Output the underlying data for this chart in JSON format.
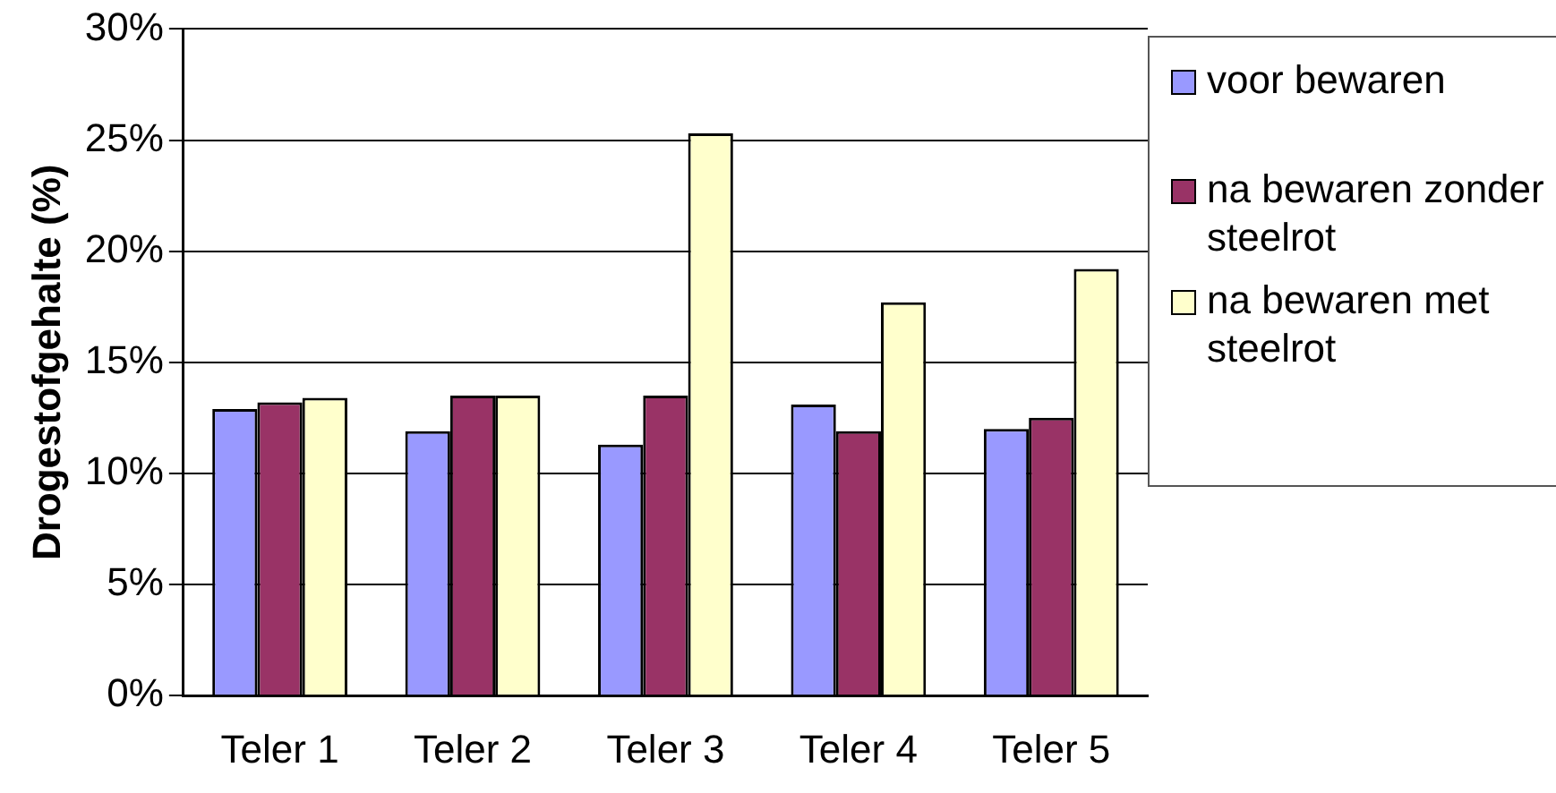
{
  "chart_data": {
    "type": "bar",
    "ylabel": "Drogestofgehalte (%)",
    "categories": [
      "Teler 1",
      "Teler 2",
      "Teler 3",
      "Teler 4",
      "Teler 5"
    ],
    "series": [
      {
        "name": "voor bewaren",
        "color": "#9999ff",
        "values": [
          12.9,
          11.9,
          11.3,
          13.1,
          12.0
        ]
      },
      {
        "name": "na bewaren zonder steelrot",
        "color": "#993366",
        "values": [
          13.2,
          13.5,
          13.5,
          11.9,
          12.5
        ]
      },
      {
        "name": "na bewaren met steelrot",
        "color": "#ffffcc",
        "values": [
          13.4,
          13.5,
          25.3,
          17.7,
          19.2
        ]
      }
    ],
    "ylim": [
      0,
      30
    ],
    "yticks": [
      {
        "value": 0,
        "label": "0%"
      },
      {
        "value": 5,
        "label": "5%"
      },
      {
        "value": 10,
        "label": "10%"
      },
      {
        "value": 15,
        "label": "15%"
      },
      {
        "value": 20,
        "label": "20%"
      },
      {
        "value": 25,
        "label": "25%"
      },
      {
        "value": 30,
        "label": "30%"
      }
    ],
    "grid": "y",
    "legend": "right"
  }
}
